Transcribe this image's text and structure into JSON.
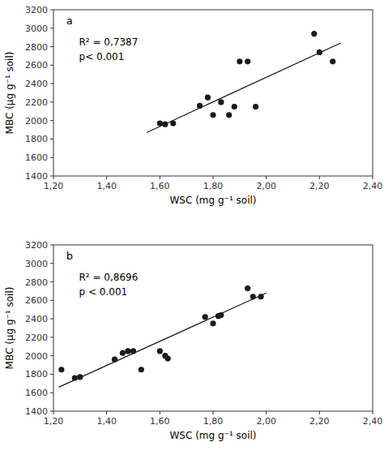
{
  "chart_data": [
    {
      "type": "scatter",
      "label": "a",
      "annotations": [
        "R² = 0,7387",
        "p< 0.001"
      ],
      "x_label": "WSC (mg g⁻¹ soil)",
      "y_label": "MBC (μg g⁻¹ soil)",
      "series": [
        {
          "type": "scatter",
          "color": "#1a1a1a",
          "x": [
            1.6,
            1.62,
            1.65,
            1.75,
            1.78,
            1.8,
            1.83,
            1.86,
            1.88,
            1.9,
            1.93,
            1.96,
            2.18,
            2.2,
            2.25
          ],
          "values": [
            1970,
            1960,
            1970,
            2160,
            2250,
            2060,
            2200,
            2060,
            2150,
            2640,
            2640,
            2150,
            2940,
            2740,
            2640
          ]
        },
        {
          "type": "line",
          "color": "#1a1a1a",
          "x": [
            1.55,
            2.28
          ],
          "values": [
            1870,
            2840
          ]
        }
      ],
      "xlim": [
        1.2,
        2.4
      ],
      "ylim": [
        1400,
        3200
      ],
      "xticks": [
        {
          "value": 1.2,
          "label": "1,20"
        },
        {
          "value": 1.4,
          "label": "1,40"
        },
        {
          "value": 1.6,
          "label": "1,60"
        },
        {
          "value": 1.8,
          "label": "1,80"
        },
        {
          "value": 2.0,
          "label": "2,00"
        },
        {
          "value": 2.2,
          "label": "2,20"
        },
        {
          "value": 2.4,
          "label": "2,40"
        }
      ],
      "yticks": [
        1400,
        1600,
        1800,
        2000,
        2200,
        2400,
        2600,
        2800,
        3000,
        3200
      ],
      "grid": false
    },
    {
      "type": "scatter",
      "label": "b",
      "annotations": [
        "R² = 0,8696",
        "p < 0.001"
      ],
      "x_label": "WSC (mg g⁻¹ soil)",
      "y_label": "MBC (μg g⁻¹ soil)",
      "series": [
        {
          "type": "scatter",
          "color": "#1a1a1a",
          "x": [
            1.23,
            1.28,
            1.3,
            1.43,
            1.46,
            1.48,
            1.5,
            1.53,
            1.6,
            1.62,
            1.63,
            1.77,
            1.8,
            1.82,
            1.83,
            1.93,
            1.95,
            1.98
          ],
          "values": [
            1850,
            1760,
            1770,
            1960,
            2030,
            2050,
            2050,
            1850,
            2050,
            2000,
            1970,
            2420,
            2350,
            2430,
            2440,
            2730,
            2640,
            2640
          ]
        },
        {
          "type": "line",
          "color": "#1a1a1a",
          "x": [
            1.22,
            2.0
          ],
          "values": [
            1660,
            2680
          ]
        }
      ],
      "xlim": [
        1.2,
        2.4
      ],
      "ylim": [
        1400,
        3200
      ],
      "xticks": [
        {
          "value": 1.2,
          "label": "1,20"
        },
        {
          "value": 1.4,
          "label": "1,40"
        },
        {
          "value": 1.6,
          "label": "1,60"
        },
        {
          "value": 1.8,
          "label": "1,80"
        },
        {
          "value": 2.0,
          "label": "2,00"
        },
        {
          "value": 2.2,
          "label": "2,20"
        },
        {
          "value": 2.4,
          "label": "2,40"
        }
      ],
      "yticks": [
        1400,
        1600,
        1800,
        2000,
        2200,
        2400,
        2600,
        2800,
        3000,
        3200
      ],
      "grid": false
    }
  ]
}
